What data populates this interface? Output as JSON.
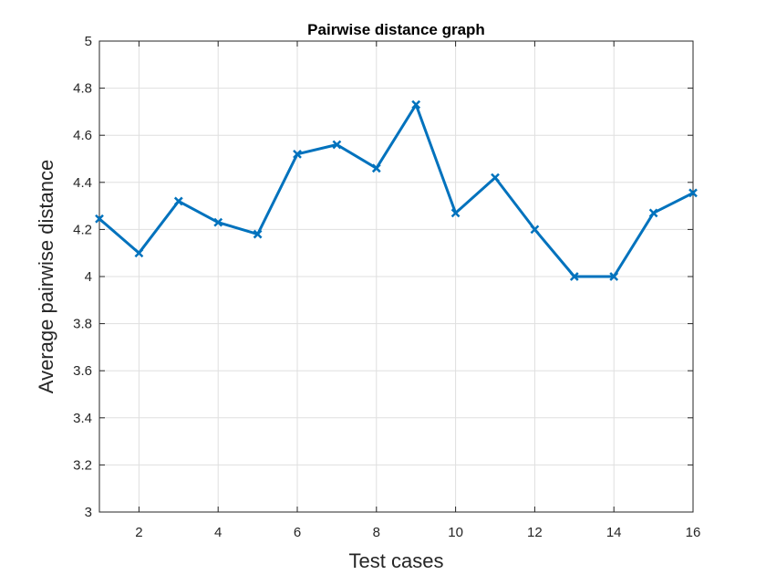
{
  "chart_data": {
    "type": "line",
    "title": "Pairwise distance graph",
    "xlabel": "Test cases",
    "ylabel": "Average pairwise distance",
    "xlim": [
      1,
      16
    ],
    "ylim": [
      3,
      5
    ],
    "x_ticks": [
      2,
      4,
      6,
      8,
      10,
      12,
      14,
      16
    ],
    "y_ticks": [
      3,
      3.2,
      3.4,
      3.6,
      3.8,
      4,
      4.2,
      4.4,
      4.6,
      4.8,
      5
    ],
    "x_tick_labels": [
      "2",
      "4",
      "6",
      "8",
      "10",
      "12",
      "14",
      "16"
    ],
    "y_tick_labels": [
      "3",
      "3.2",
      "3.4",
      "3.6",
      "3.8",
      "4",
      "4.2",
      "4.4",
      "4.6",
      "4.8",
      "5"
    ],
    "grid": true,
    "series": [
      {
        "color": "#0072bd",
        "marker": "x",
        "x": [
          1,
          2,
          3,
          4,
          5,
          6,
          7,
          8,
          9,
          10,
          11,
          12,
          13,
          14,
          15,
          16
        ],
        "y": [
          4.245,
          4.1,
          4.32,
          4.23,
          4.18,
          4.52,
          4.56,
          4.46,
          4.73,
          4.27,
          4.42,
          4.2,
          4.0,
          4.0,
          4.27,
          4.355
        ]
      }
    ]
  }
}
